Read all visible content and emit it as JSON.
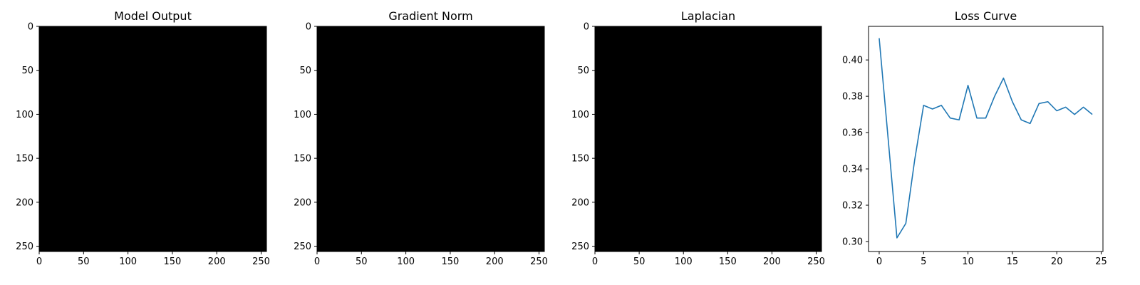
{
  "chart_data": [
    {
      "type": "heatmap",
      "title": "Model Output",
      "xlim": [
        0,
        256
      ],
      "ylim": [
        256,
        0
      ],
      "xticks": [
        0,
        50,
        100,
        150,
        200,
        250
      ],
      "yticks": [
        0,
        50,
        100,
        150,
        200,
        250
      ],
      "fill_color": "#000000",
      "grid": false
    },
    {
      "type": "heatmap",
      "title": "Gradient Norm",
      "xlim": [
        0,
        256
      ],
      "ylim": [
        256,
        0
      ],
      "xticks": [
        0,
        50,
        100,
        150,
        200,
        250
      ],
      "yticks": [
        0,
        50,
        100,
        150,
        200,
        250
      ],
      "fill_color": "#000000",
      "grid": false
    },
    {
      "type": "heatmap",
      "title": "Laplacian",
      "xlim": [
        0,
        256
      ],
      "ylim": [
        256,
        0
      ],
      "xticks": [
        0,
        50,
        100,
        150,
        200,
        250
      ],
      "yticks": [
        0,
        50,
        100,
        150,
        200,
        250
      ],
      "fill_color": "#000000",
      "grid": false
    },
    {
      "type": "line",
      "title": "Loss Curve",
      "xlim": [
        -1.2,
        25.2
      ],
      "ylim": [
        0.2945,
        0.4185
      ],
      "xticks": [
        0,
        5,
        10,
        15,
        20,
        25
      ],
      "yticks": [
        0.3,
        0.32,
        0.34,
        0.36,
        0.38,
        0.4
      ],
      "grid": false,
      "series": [
        {
          "color": "#1f77b4",
          "x": [
            0,
            1,
            2,
            3,
            4,
            5,
            6,
            7,
            8,
            9,
            10,
            11,
            12,
            13,
            14,
            15,
            16,
            17,
            18,
            19,
            20,
            21,
            22,
            23,
            24
          ],
          "y": [
            0.412,
            0.357,
            0.302,
            0.31,
            0.345,
            0.375,
            0.373,
            0.375,
            0.368,
            0.367,
            0.386,
            0.368,
            0.368,
            0.38,
            0.39,
            0.377,
            0.367,
            0.365,
            0.376,
            0.377,
            0.372,
            0.374,
            0.37,
            0.374,
            0.37
          ]
        }
      ]
    }
  ]
}
